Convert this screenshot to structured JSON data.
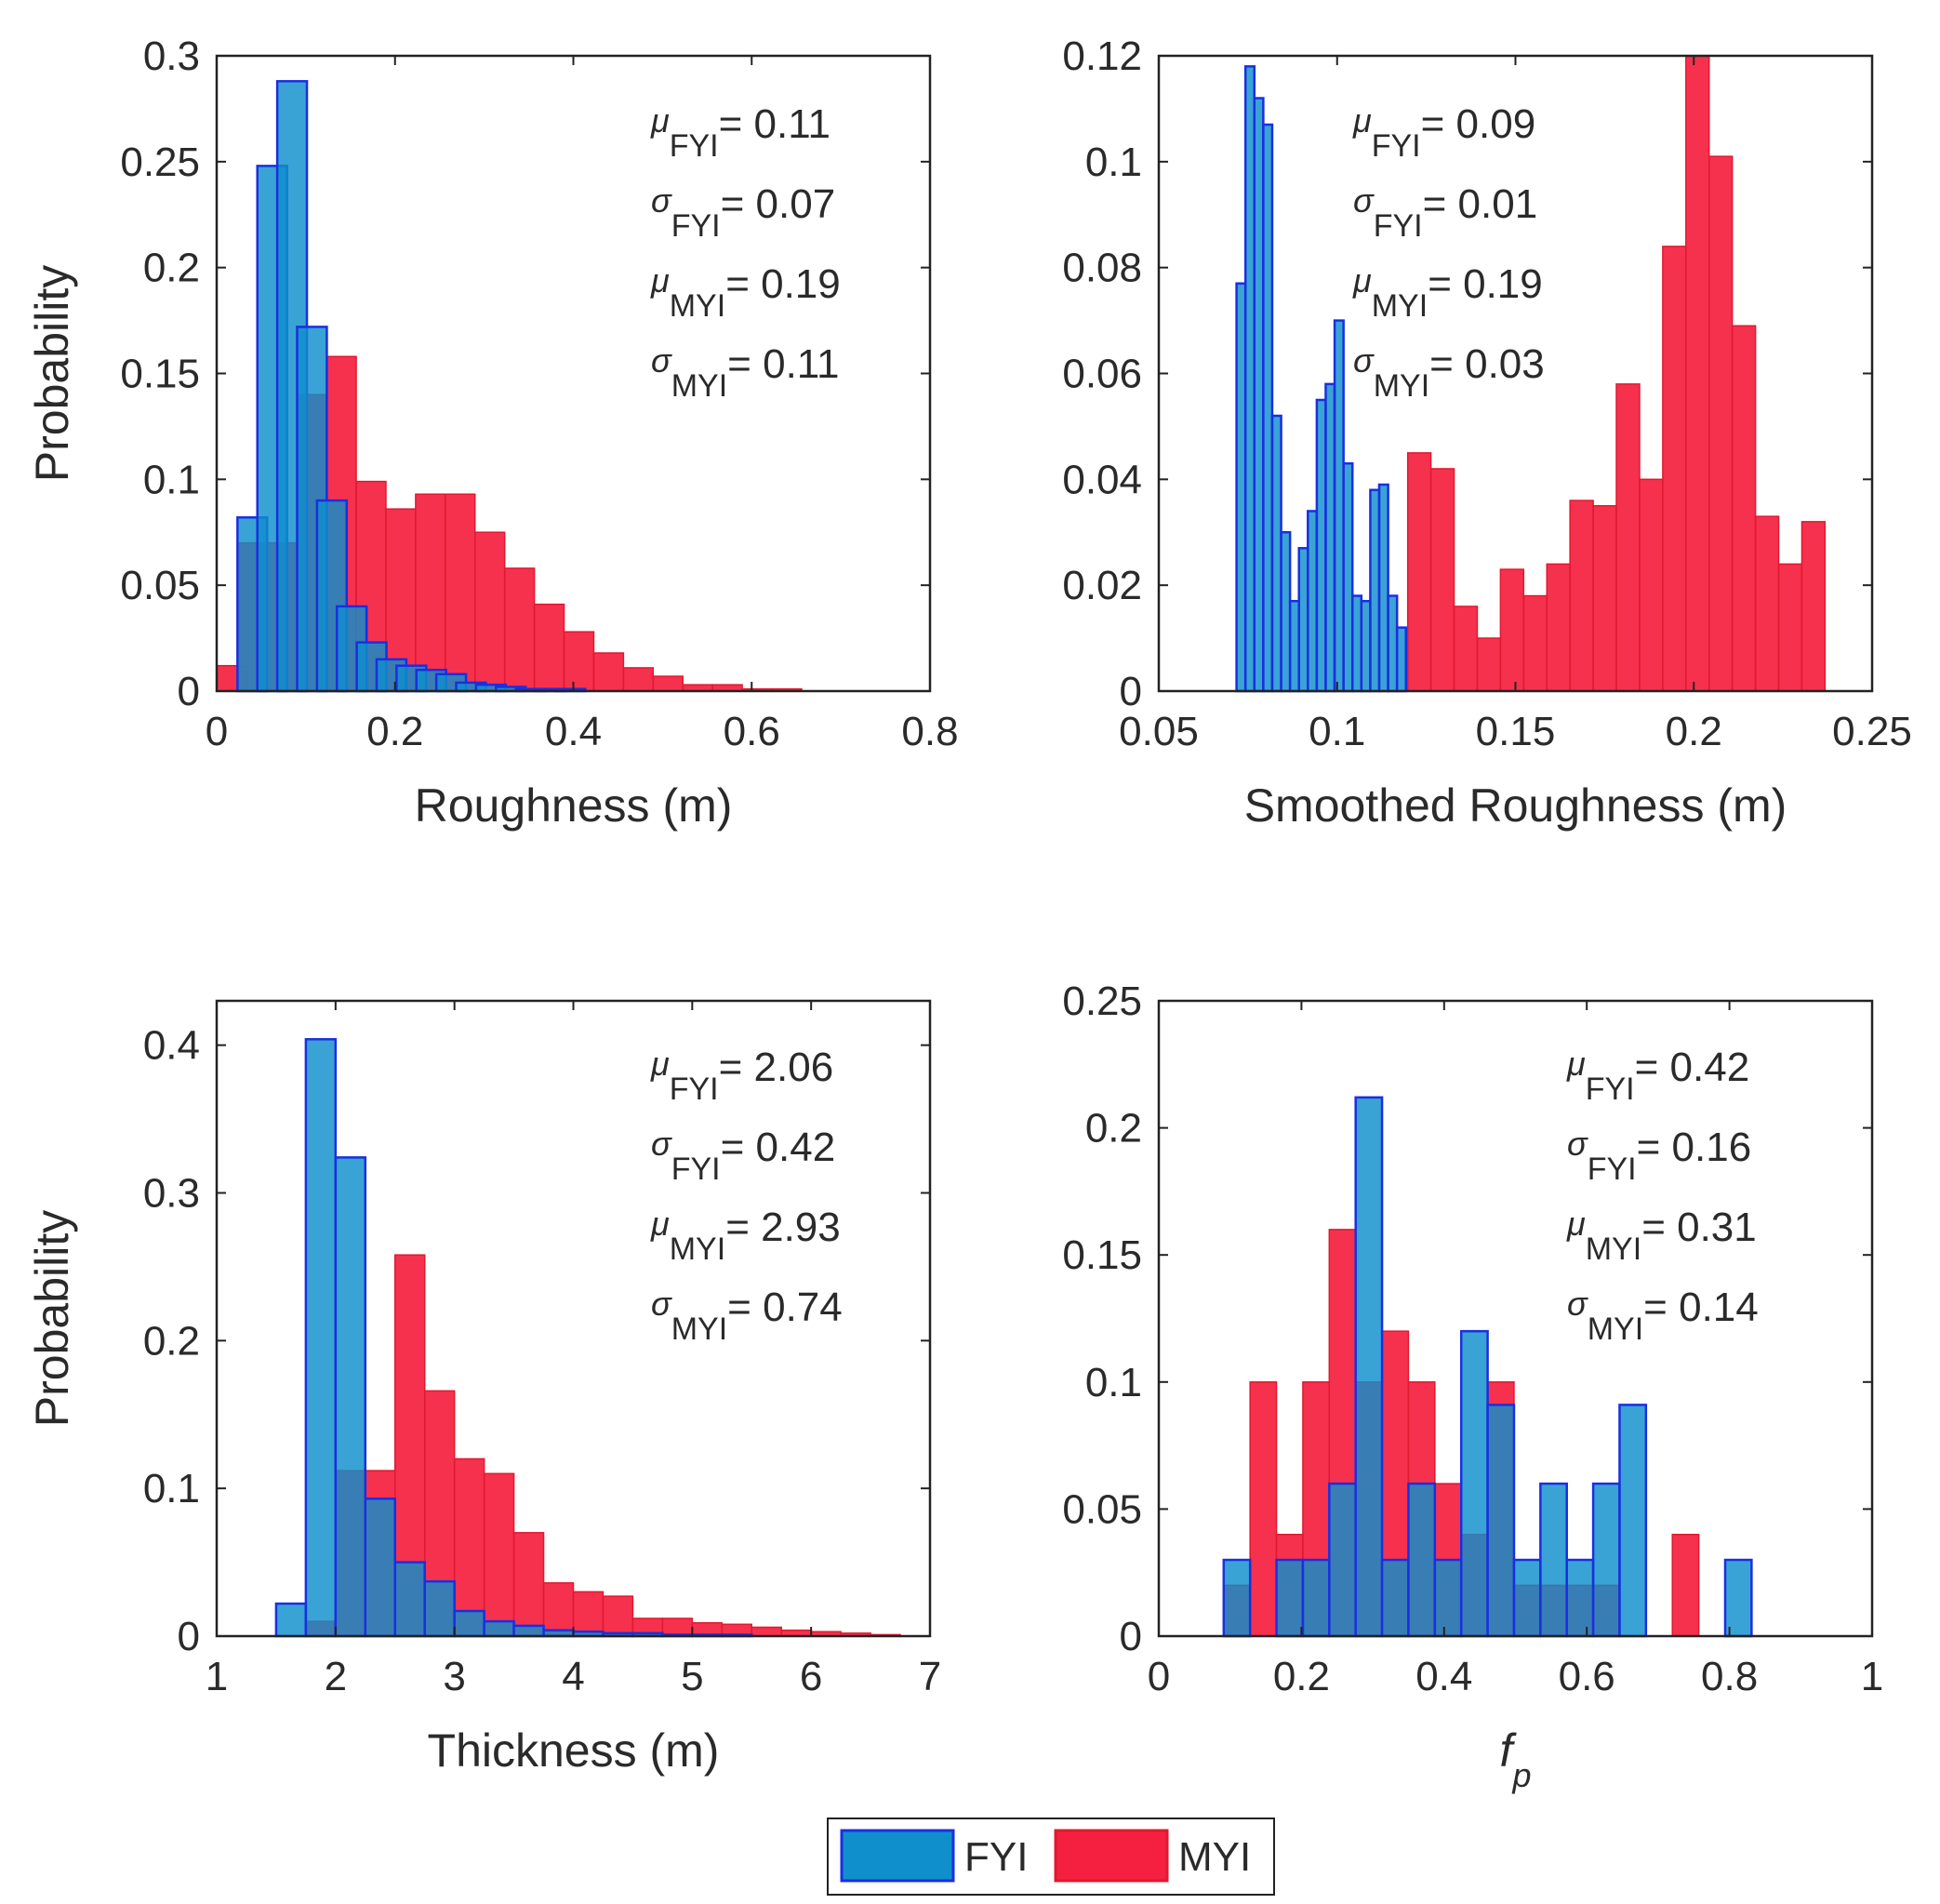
{
  "colors": {
    "fyi": "#0f8fcc",
    "fyi_edge": "#1a2fe0",
    "myi": "#f5203f",
    "myi_edge": "#e0192f",
    "axis": "#222222"
  },
  "legend": {
    "placement": "bottom-center",
    "items": [
      {
        "label": "FYI",
        "color": "#0f8fcc"
      },
      {
        "label": "MYI",
        "color": "#f5203f"
      }
    ]
  },
  "chart_data": [
    {
      "id": "roughness",
      "type": "bar",
      "title": "",
      "xlabel": "Roughness (m)",
      "ylabel": "Probability",
      "xlim": [
        0,
        0.8
      ],
      "ylim": [
        0,
        0.3
      ],
      "xticks": [
        "0",
        "0.2",
        "0.4",
        "0.6",
        "0.8"
      ],
      "yticks": [
        "0",
        "0.05",
        "0.1",
        "0.15",
        "0.2",
        "0.25",
        "0.3"
      ],
      "bin_width": 0.0333,
      "series": [
        {
          "name": "MYI",
          "bin_starts": [
            0,
            0.0233,
            0.0566,
            0.0899,
            0.1232,
            0.1565,
            0.1898,
            0.2231,
            0.2564,
            0.2897,
            0.323,
            0.3563,
            0.3896,
            0.4229,
            0.4562,
            0.4895,
            0.5228,
            0.5561,
            0.5894,
            0.6227
          ],
          "values": [
            0.012,
            0.07,
            0.07,
            0.14,
            0.158,
            0.099,
            0.086,
            0.093,
            0.093,
            0.075,
            0.058,
            0.041,
            0.028,
            0.018,
            0.011,
            0.007,
            0.003,
            0.003,
            0.001,
            0.001
          ]
        },
        {
          "name": "FYI",
          "bin_starts": [
            0.0233,
            0.0456,
            0.0679,
            0.0902,
            0.1125,
            0.1348,
            0.1571,
            0.1794,
            0.2017,
            0.224,
            0.2463,
            0.2686,
            0.2909,
            0.3132,
            0.3355,
            0.3578,
            0.3801
          ],
          "values": [
            0.082,
            0.248,
            0.288,
            0.172,
            0.09,
            0.04,
            0.023,
            0.015,
            0.012,
            0.01,
            0.008,
            0.004,
            0.003,
            0.002,
            0.001,
            0.001,
            0.001
          ]
        }
      ],
      "stats": [
        {
          "symbol": "μ",
          "sub": "FYI",
          "value": "= 0.11"
        },
        {
          "symbol": "σ",
          "sub": "FYI",
          "value": "= 0.07"
        },
        {
          "symbol": "μ",
          "sub": "MYI",
          "value": "= 0.19"
        },
        {
          "symbol": "σ",
          "sub": "MYI",
          "value": "= 0.11"
        }
      ]
    },
    {
      "id": "smoothed",
      "type": "bar",
      "title": "",
      "xlabel": "Smoothed Roughness (m)",
      "ylabel": "",
      "xlim": [
        0.05,
        0.25
      ],
      "ylim": [
        0,
        0.12
      ],
      "xticks": [
        "0.05",
        "0.1",
        "0.15",
        "0.2",
        "0.25"
      ],
      "yticks": [
        "0",
        "0.02",
        "0.04",
        "0.06",
        "0.08",
        "0.1",
        "0.12"
      ],
      "series": [
        {
          "name": "MYI",
          "bin_starts": [
            0.1198,
            0.1263,
            0.1328,
            0.1393,
            0.1458,
            0.1523,
            0.1588,
            0.1653,
            0.1718,
            0.1783,
            0.1848,
            0.1913,
            0.1978,
            0.2043,
            0.2108,
            0.2173,
            0.2238,
            0.2303
          ],
          "bin_width": 0.0065,
          "values": [
            0.045,
            0.042,
            0.016,
            0.01,
            0.023,
            0.018,
            0.024,
            0.036,
            0.035,
            0.058,
            0.04,
            0.084,
            0.12,
            0.101,
            0.069,
            0.033,
            0.024,
            0.032
          ]
        },
        {
          "name": "FYI",
          "bin_starts": [
            0.0718,
            0.0743,
            0.0768,
            0.0793,
            0.0818,
            0.0843,
            0.0868,
            0.0893,
            0.0918,
            0.0943,
            0.0968,
            0.0993,
            0.1018,
            0.1043,
            0.1068,
            0.1093,
            0.1118,
            0.1143,
            0.1168
          ],
          "bin_width": 0.0025,
          "values": [
            0.077,
            0.118,
            0.112,
            0.107,
            0.052,
            0.03,
            0.017,
            0.027,
            0.034,
            0.055,
            0.058,
            0.07,
            0.043,
            0.018,
            0.017,
            0.038,
            0.039,
            0.018,
            0.012
          ]
        }
      ],
      "stats": [
        {
          "symbol": "μ",
          "sub": "FYI",
          "value": "= 0.09"
        },
        {
          "symbol": "σ",
          "sub": "FYI",
          "value": "= 0.01"
        },
        {
          "symbol": "μ",
          "sub": "MYI",
          "value": "= 0.19"
        },
        {
          "symbol": "σ",
          "sub": "MYI",
          "value": "= 0.03"
        }
      ]
    },
    {
      "id": "thickness",
      "type": "bar",
      "title": "",
      "xlabel": "Thickness (m)",
      "ylabel": "Probability",
      "xlim": [
        1,
        7
      ],
      "ylim": [
        0,
        0.43
      ],
      "xticks": [
        "1",
        "2",
        "3",
        "4",
        "5",
        "6",
        "7"
      ],
      "yticks": [
        "0",
        "0.1",
        "0.2",
        "0.3",
        "0.4"
      ],
      "series": [
        {
          "name": "MYI",
          "bin_starts": [
            1.5,
            1.75,
            2.0,
            2.25,
            2.5,
            2.75,
            3.0,
            3.25,
            3.5,
            3.75,
            4.0,
            4.25,
            4.5,
            4.75,
            5.0,
            5.25,
            5.5,
            5.75,
            6.0,
            6.25,
            6.5
          ],
          "bin_width": 0.25,
          "values": [
            0.0,
            0.01,
            0.112,
            0.112,
            0.258,
            0.166,
            0.12,
            0.11,
            0.07,
            0.036,
            0.03,
            0.027,
            0.012,
            0.012,
            0.009,
            0.008,
            0.006,
            0.004,
            0.003,
            0.002,
            0.001
          ]
        },
        {
          "name": "FYI",
          "bin_starts": [
            1.5,
            1.75,
            2.0,
            2.25,
            2.5,
            2.75,
            3.0,
            3.25,
            3.5,
            3.75,
            4.0,
            4.25,
            4.5,
            4.75,
            5.0,
            5.25
          ],
          "bin_width": 0.25,
          "values": [
            0.022,
            0.404,
            0.324,
            0.093,
            0.05,
            0.037,
            0.017,
            0.01,
            0.007,
            0.004,
            0.003,
            0.002,
            0.002,
            0.001,
            0.001,
            0.001
          ]
        }
      ],
      "stats": [
        {
          "symbol": "μ",
          "sub": "FYI",
          "value": "= 2.06"
        },
        {
          "symbol": "σ",
          "sub": "FYI",
          "value": "= 0.42"
        },
        {
          "symbol": "μ",
          "sub": "MYI",
          "value": "= 2.93"
        },
        {
          "symbol": "σ",
          "sub": "MYI",
          "value": "= 0.74"
        }
      ]
    },
    {
      "id": "fp",
      "type": "bar",
      "title": "",
      "xlabel": "f",
      "xlabel_sub": "p",
      "ylabel": "",
      "xlim": [
        0,
        1
      ],
      "ylim": [
        0,
        0.25
      ],
      "xticks": [
        "0",
        "0.2",
        "0.4",
        "0.6",
        "0.8",
        "1"
      ],
      "yticks": [
        "0",
        "0.05",
        "0.1",
        "0.15",
        "0.2",
        "0.25"
      ],
      "series": [
        {
          "name": "MYI",
          "bin_starts": [
            0.091,
            0.128,
            0.165,
            0.202,
            0.239,
            0.276,
            0.313,
            0.35,
            0.387,
            0.424,
            0.461,
            0.498,
            0.535,
            0.572,
            0.609,
            0.646,
            0.683,
            0.72,
            0.757
          ],
          "bin_width": 0.037,
          "values": [
            0.02,
            0.1,
            0.04,
            0.1,
            0.16,
            0.1,
            0.12,
            0.1,
            0.06,
            0.04,
            0.1,
            0.02,
            0.02,
            0.02,
            0.02,
            0.0,
            0.0,
            0.04,
            0.0
          ]
        },
        {
          "name": "FYI",
          "bin_starts": [
            0.091,
            0.128,
            0.165,
            0.202,
            0.239,
            0.276,
            0.313,
            0.35,
            0.387,
            0.424,
            0.461,
            0.498,
            0.535,
            0.572,
            0.609,
            0.646,
            0.683,
            0.72,
            0.757,
            0.794
          ],
          "bin_width": 0.037,
          "values": [
            0.03,
            0.0,
            0.03,
            0.03,
            0.06,
            0.212,
            0.03,
            0.06,
            0.03,
            0.12,
            0.091,
            0.03,
            0.06,
            0.03,
            0.06,
            0.091,
            0.0,
            0.0,
            0.0,
            0.03
          ]
        }
      ],
      "stats": [
        {
          "symbol": "μ",
          "sub": "FYI",
          "value": "= 0.42"
        },
        {
          "symbol": "σ",
          "sub": "FYI",
          "value": "= 0.16"
        },
        {
          "symbol": "μ",
          "sub": "MYI",
          "value": "= 0.31"
        },
        {
          "symbol": "σ",
          "sub": "MYI",
          "value": "= 0.14"
        }
      ]
    }
  ]
}
